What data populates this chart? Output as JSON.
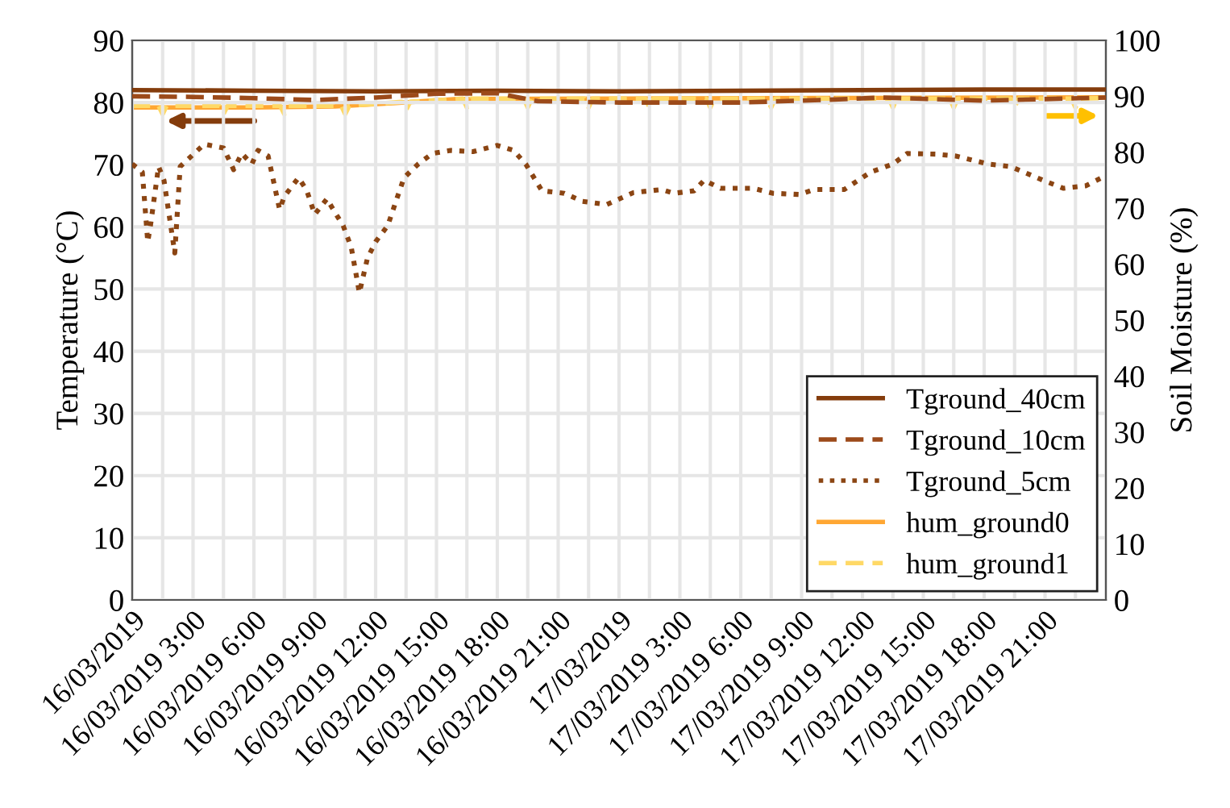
{
  "chart_data": {
    "type": "line",
    "ylabel": "Temperature (°C)",
    "y2label": "Soil Moisture (%)",
    "xlim": [
      "2019-03-16T00:00",
      "2019-03-18T00:00"
    ],
    "xticks": [
      {
        "value": "2019-03-16T00:00",
        "label": "16/03/2019"
      },
      {
        "value": "2019-03-16T01:30",
        "label": null
      },
      {
        "value": "2019-03-16T03:00",
        "label": "16/03/2019 3:00"
      },
      {
        "value": "2019-03-16T04:30",
        "label": null
      },
      {
        "value": "2019-03-16T06:00",
        "label": "16/03/2019 6:00"
      },
      {
        "value": "2019-03-16T07:30",
        "label": null
      },
      {
        "value": "2019-03-16T09:00",
        "label": "16/03/2019 9:00"
      },
      {
        "value": "2019-03-16T10:30",
        "label": null
      },
      {
        "value": "2019-03-16T12:00",
        "label": "16/03/2019 12:00"
      },
      {
        "value": "2019-03-16T13:30",
        "label": null
      },
      {
        "value": "2019-03-16T15:00",
        "label": "16/03/2019 15:00"
      },
      {
        "value": "2019-03-16T16:30",
        "label": null
      },
      {
        "value": "2019-03-16T18:00",
        "label": "16/03/2019 18:00"
      },
      {
        "value": "2019-03-16T19:30",
        "label": null
      },
      {
        "value": "2019-03-16T21:00",
        "label": "16/03/2019 21:00"
      },
      {
        "value": "2019-03-16T22:30",
        "label": null
      },
      {
        "value": "2019-03-17T00:00",
        "label": "17/03/2019"
      },
      {
        "value": "2019-03-17T01:30",
        "label": null
      },
      {
        "value": "2019-03-17T03:00",
        "label": "17/03/2019 3:00"
      },
      {
        "value": "2019-03-17T04:30",
        "label": null
      },
      {
        "value": "2019-03-17T06:00",
        "label": "17/03/2019 6:00"
      },
      {
        "value": "2019-03-17T07:30",
        "label": null
      },
      {
        "value": "2019-03-17T09:00",
        "label": "17/03/2019 9:00"
      },
      {
        "value": "2019-03-17T10:30",
        "label": null
      },
      {
        "value": "2019-03-17T12:00",
        "label": "17/03/2019 12:00"
      },
      {
        "value": "2019-03-17T13:30",
        "label": null
      },
      {
        "value": "2019-03-17T15:00",
        "label": "17/03/2019 15:00"
      },
      {
        "value": "2019-03-17T16:30",
        "label": null
      },
      {
        "value": "2019-03-17T18:00",
        "label": "17/03/2019 18:00"
      },
      {
        "value": "2019-03-17T19:30",
        "label": null
      },
      {
        "value": "2019-03-17T21:00",
        "label": "17/03/2019 21:00"
      },
      {
        "value": "2019-03-17T22:30",
        "label": null
      }
    ],
    "ylim": [
      0,
      90
    ],
    "yticks": [
      0,
      10,
      20,
      30,
      40,
      50,
      60,
      70,
      80,
      90
    ],
    "y2lim": [
      0,
      100
    ],
    "y2ticks": [
      0,
      10,
      20,
      30,
      40,
      50,
      60,
      70,
      80,
      90,
      100
    ],
    "grid": true,
    "legend": "bottom right",
    "marker": "none",
    "series": [
      {
        "name": "Tground_40cm",
        "color": "#843c0c",
        "line_style": "solid",
        "x": [
          "2019-03-16T00:00",
          "2019-03-16T06:00",
          "2019-03-16T12:00",
          "2019-03-16T18:00",
          "2019-03-17T00:00",
          "2019-03-17T06:00",
          "2019-03-17T12:00",
          "2019-03-17T18:00",
          "2019-03-18T00:00"
        ],
        "values": [
          82,
          81.9,
          81.8,
          81.9,
          81.8,
          81.9,
          82,
          82.1,
          82.1
        ]
      },
      {
        "name": "Tground_10cm",
        "color": "#9c4a1a",
        "line_style": "dashed",
        "x": [
          "2019-03-16T00:00",
          "2019-03-16T03:00",
          "2019-03-16T06:00",
          "2019-03-16T09:00",
          "2019-03-16T12:00",
          "2019-03-16T15:00",
          "2019-03-16T18:00",
          "2019-03-16T20:00",
          "2019-03-17T00:00",
          "2019-03-17T06:00",
          "2019-03-17T10:00",
          "2019-03-17T13:00",
          "2019-03-17T18:00",
          "2019-03-18T00:00"
        ],
        "values": [
          81,
          80.9,
          80.7,
          80.4,
          80.8,
          81.4,
          81.5,
          80.2,
          80,
          80,
          80.4,
          80.8,
          80.3,
          80.8
        ]
      },
      {
        "name": "Tground_5cm",
        "color": "#8b4513",
        "line_style": "dotted",
        "x": [
          "2019-03-16T00:00",
          "2019-03-16T00:30",
          "2019-03-16T00:46",
          "2019-03-16T00:54",
          "2019-03-16T01:18",
          "2019-03-16T01:34",
          "2019-03-16T02:06",
          "2019-03-16T02:22",
          "2019-03-16T03:33",
          "2019-03-16T04:30",
          "2019-03-16T05:00",
          "2019-03-16T05:24",
          "2019-03-16T05:54",
          "2019-03-16T06:12",
          "2019-03-16T06:42",
          "2019-03-16T07:16",
          "2019-03-16T07:30",
          "2019-03-16T08:12",
          "2019-03-16T08:36",
          "2019-03-16T09:00",
          "2019-03-16T09:36",
          "2019-03-16T10:00",
          "2019-03-16T10:24",
          "2019-03-16T10:48",
          "2019-03-16T11:12",
          "2019-03-16T11:36",
          "2019-03-16T12:00",
          "2019-03-16T12:36",
          "2019-03-16T13:00",
          "2019-03-16T13:24",
          "2019-03-16T14:06",
          "2019-03-16T14:48",
          "2019-03-16T15:42",
          "2019-03-16T16:48",
          "2019-03-16T18:00",
          "2019-03-16T18:48",
          "2019-03-16T19:24",
          "2019-03-16T20:12",
          "2019-03-16T21:18",
          "2019-03-16T22:12",
          "2019-03-16T23:24",
          "2019-03-17T00:42",
          "2019-03-17T02:06",
          "2019-03-17T02:42",
          "2019-03-17T03:42",
          "2019-03-17T04:12",
          "2019-03-17T05:00",
          "2019-03-17T06:36",
          "2019-03-17T07:36",
          "2019-03-17T08:54",
          "2019-03-17T09:36",
          "2019-03-17T11:06",
          "2019-03-17T12:24",
          "2019-03-17T13:30",
          "2019-03-17T14:12",
          "2019-03-17T15:36",
          "2019-03-17T16:36",
          "2019-03-17T18:12",
          "2019-03-17T19:18",
          "2019-03-17T20:54",
          "2019-03-17T21:54",
          "2019-03-17T23:00",
          "2019-03-17T23:48"
        ],
        "values": [
          70.1,
          68.8,
          57.6,
          60.2,
          69.7,
          67.5,
          55.8,
          69.7,
          73.3,
          72.7,
          69.2,
          71.8,
          70.1,
          72.3,
          71.4,
          62.8,
          64.9,
          67.9,
          65.9,
          62.0,
          64.5,
          62.3,
          60.2,
          56.7,
          49.4,
          55.0,
          57.6,
          60.2,
          64.1,
          67.9,
          70.1,
          71.8,
          72.3,
          72.1,
          73.1,
          72.3,
          70.1,
          65.8,
          65.4,
          64.1,
          63.6,
          65.5,
          66.0,
          65.4,
          65.8,
          67.5,
          66.2,
          66.2,
          65.4,
          65.2,
          66.0,
          66.0,
          68.8,
          70.1,
          71.8,
          71.7,
          71.4,
          70.1,
          69.7,
          67.5,
          66.2,
          66.6,
          67.9
        ]
      },
      {
        "name": "hum_ground0",
        "color": "#ffa733",
        "line_style": "solid",
        "axis": "y2",
        "x": [
          "2019-03-16T00:00",
          "2019-03-16T06:00",
          "2019-03-16T10:00",
          "2019-03-16T13:00",
          "2019-03-16T16:00",
          "2019-03-17T00:00",
          "2019-03-17T12:00",
          "2019-03-18T00:00"
        ],
        "values": [
          88,
          88,
          88.2,
          88.8,
          89.5,
          89.6,
          89.7,
          89.8
        ]
      },
      {
        "name": "hum_ground1",
        "color": "#ffd966",
        "line_style": "dashed",
        "axis": "y2",
        "x": [
          "2019-03-16T00:00",
          "2019-03-16T01:18",
          "2019-03-16T01:30",
          "2019-03-16T01:42",
          "2019-03-16T04:18",
          "2019-03-16T04:30",
          "2019-03-16T04:42",
          "2019-03-16T07:18",
          "2019-03-16T07:30",
          "2019-03-16T07:42",
          "2019-03-16T10:18",
          "2019-03-16T10:30",
          "2019-03-16T10:42",
          "2019-03-16T13:18",
          "2019-03-16T13:30",
          "2019-03-16T13:42",
          "2019-03-16T16:18",
          "2019-03-16T16:30",
          "2019-03-16T16:42",
          "2019-03-16T19:18",
          "2019-03-16T19:30",
          "2019-03-16T19:42",
          "2019-03-16T22:18",
          "2019-03-16T22:30",
          "2019-03-16T22:42",
          "2019-03-17T01:18",
          "2019-03-17T01:30",
          "2019-03-17T01:42",
          "2019-03-17T04:18",
          "2019-03-17T04:30",
          "2019-03-17T04:42",
          "2019-03-17T07:18",
          "2019-03-17T07:30",
          "2019-03-17T07:42",
          "2019-03-17T10:18",
          "2019-03-17T10:30",
          "2019-03-17T10:42",
          "2019-03-17T13:18",
          "2019-03-17T13:30",
          "2019-03-17T13:42",
          "2019-03-17T16:18",
          "2019-03-17T16:30",
          "2019-03-17T16:42",
          "2019-03-17T19:18",
          "2019-03-17T19:30",
          "2019-03-17T19:42",
          "2019-03-17T22:18",
          "2019-03-17T22:30",
          "2019-03-17T22:42",
          "2019-03-18T00:00"
        ],
        "values": [
          88.3,
          88.3,
          86.8,
          88.3,
          88.3,
          86.8,
          88.3,
          88.3,
          86.8,
          88.3,
          88.3,
          86.8,
          88.3,
          89.0,
          87.5,
          89.0,
          89.6,
          88.0,
          89.6,
          89.6,
          88.0,
          89.6,
          89.6,
          88.0,
          89.6,
          89.6,
          88.0,
          89.6,
          89.6,
          88.0,
          89.6,
          89.6,
          88.0,
          89.6,
          89.6,
          88.0,
          89.6,
          89.6,
          88.0,
          89.6,
          89.6,
          88.0,
          89.6,
          89.6,
          88.0,
          89.6,
          89.6,
          88.0,
          89.6,
          89.7
        ]
      }
    ]
  }
}
